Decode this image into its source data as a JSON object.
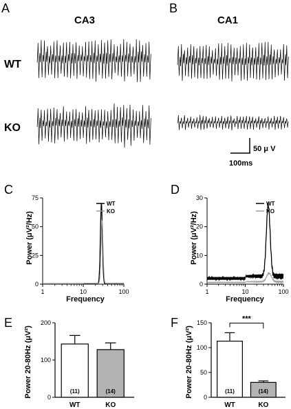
{
  "panels": {
    "A": {
      "label": "A",
      "title": "CA3"
    },
    "B": {
      "label": "B",
      "title": "CA1"
    },
    "C": {
      "label": "C"
    },
    "D": {
      "label": "D"
    },
    "E": {
      "label": "E"
    },
    "F": {
      "label": "F"
    }
  },
  "rows": {
    "wt": "WT",
    "ko": "KO"
  },
  "scalebar": {
    "amplitude": "50 μ V",
    "time": "100ms"
  },
  "colors": {
    "wt": "#000000",
    "ko": "#9a9a9a",
    "ko_bar": "#b3b3b3",
    "wt_bar": "#ffffff"
  },
  "traces": {
    "CA3_WT": {
      "cycles": 36,
      "amplitude": 1.0
    },
    "CA3_KO": {
      "cycles": 36,
      "amplitude": 1.0
    },
    "CA1_WT": {
      "cycles": 36,
      "amplitude": 0.95
    },
    "CA1_KO": {
      "cycles": 36,
      "amplitude": 0.35
    }
  },
  "chart_data": [
    {
      "id": "C",
      "type": "line",
      "xlabel": "Frequency",
      "ylabel": "Power (μV²/Hz)",
      "xscale": "log",
      "xlim": [
        1,
        100
      ],
      "ylim": [
        0,
        75
      ],
      "yticks": [
        0,
        25,
        50,
        75
      ],
      "xticks": [
        "1",
        "10",
        "100"
      ],
      "legend": "top-right",
      "series": [
        {
          "name": "WT",
          "color": "#000000",
          "baseline": 0.4,
          "peak": {
            "x": 28,
            "y": 70,
            "width": 0.035
          }
        },
        {
          "name": "KO",
          "color": "#9a9a9a",
          "baseline": 0.5,
          "peak": {
            "x": 29,
            "y": 55,
            "width": 0.035
          }
        }
      ]
    },
    {
      "id": "D",
      "type": "line",
      "xlabel": "Frequency",
      "ylabel": "Power (μV²/Hz)",
      "xscale": "log",
      "xlim": [
        1,
        100
      ],
      "ylim": [
        0,
        30
      ],
      "yticks": [
        0,
        10,
        20,
        30
      ],
      "xticks": [
        "1",
        "10",
        "100"
      ],
      "legend": "top-right",
      "series": [
        {
          "name": "WT",
          "color": "#000000",
          "baseline": 2.0,
          "peak": {
            "x": 40,
            "y": 25,
            "width": 0.07
          }
        },
        {
          "name": "KO",
          "color": "#9a9a9a",
          "baseline": 0.6,
          "peak": {
            "x": 42,
            "y": 3,
            "width": 0.09
          }
        }
      ]
    },
    {
      "id": "E",
      "type": "bar",
      "ylabel": "Power 20-80Hz (μV²)",
      "categories": [
        "WT",
        "KO"
      ],
      "values": [
        143,
        128
      ],
      "errors": [
        23,
        18
      ],
      "n_labels": [
        "(11)",
        "(14)"
      ],
      "ylim": [
        0,
        200
      ],
      "yticks": [
        0,
        100,
        200
      ]
    },
    {
      "id": "F",
      "type": "bar",
      "ylabel": "Power 20-80Hz (μV²)",
      "categories": [
        "WT",
        "KO"
      ],
      "values": [
        113,
        30
      ],
      "errors": [
        17,
        3
      ],
      "n_labels": [
        "(11)",
        "(14)"
      ],
      "significance": "***",
      "ylim": [
        0,
        150
      ],
      "yticks": [
        0,
        50,
        100,
        150
      ]
    }
  ]
}
